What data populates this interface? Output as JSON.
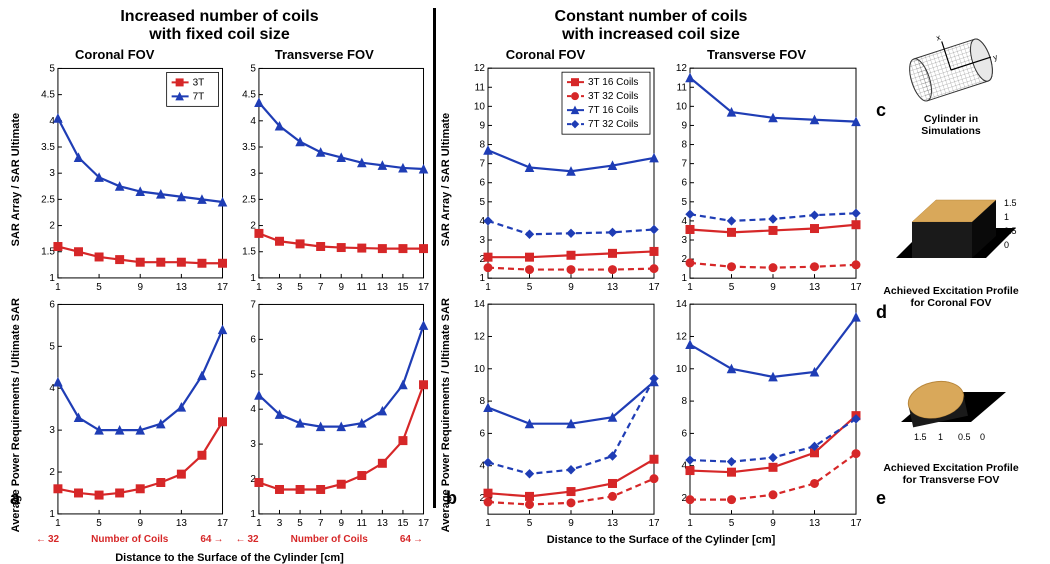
{
  "group_a": {
    "title_l1": "Increased number of coils",
    "title_l2": "with fixed coil size",
    "sub1": "Coronal FOV",
    "sub2": "Transverse FOV",
    "ylabel_top": "SAR Array / SAR Ultimate",
    "ylabel_bot": "Average Power Requirements /\nUltimate SAR",
    "xlabel": "Distance to the Surface of the Cylinder [cm]",
    "numcoils_left": "32",
    "numcoils_mid": "Number of Coils",
    "numcoils_right": "64",
    "legend": [
      {
        "label": "3T",
        "color": "#d62728",
        "marker": "square",
        "dash": false
      },
      {
        "label": "7T",
        "color": "#1f3db5",
        "marker": "triangle",
        "dash": false
      }
    ],
    "plots": {
      "top_left": {
        "xlim": [
          1,
          17
        ],
        "ylim": [
          1,
          5
        ],
        "xticks": [
          1,
          5,
          9,
          13,
          17
        ],
        "yticks": [
          1,
          1.5,
          2,
          2.5,
          3,
          3.5,
          4,
          4.5,
          5
        ],
        "x": [
          1,
          3,
          5,
          7,
          9,
          11,
          13,
          15,
          17
        ],
        "series": [
          {
            "key": "3T",
            "y": [
              1.6,
              1.5,
              1.4,
              1.35,
              1.3,
              1.3,
              1.3,
              1.28,
              1.28
            ]
          },
          {
            "key": "7T",
            "y": [
              4.05,
              3.3,
              2.92,
              2.75,
              2.65,
              2.6,
              2.55,
              2.5,
              2.45
            ]
          }
        ]
      },
      "top_right": {
        "xlim": [
          1,
          17
        ],
        "ylim": [
          1,
          5
        ],
        "xticks": [
          1,
          3,
          5,
          7,
          9,
          11,
          13,
          15,
          17
        ],
        "yticks": [
          1,
          1.5,
          2,
          2.5,
          3,
          3.5,
          4,
          4.5,
          5
        ],
        "x": [
          1,
          3,
          5,
          7,
          9,
          11,
          13,
          15,
          17
        ],
        "series": [
          {
            "key": "3T",
            "y": [
              1.85,
              1.7,
              1.65,
              1.6,
              1.58,
              1.57,
              1.56,
              1.56,
              1.56
            ]
          },
          {
            "key": "7T",
            "y": [
              4.35,
              3.9,
              3.6,
              3.4,
              3.3,
              3.2,
              3.15,
              3.1,
              3.08
            ]
          }
        ]
      },
      "bot_left": {
        "xlim": [
          1,
          17
        ],
        "ylim": [
          1,
          6
        ],
        "xticks": [
          1,
          5,
          9,
          13,
          17
        ],
        "yticks": [
          1,
          2,
          3,
          4,
          5,
          6
        ],
        "x": [
          1,
          3,
          5,
          7,
          9,
          11,
          13,
          15,
          17
        ],
        "series": [
          {
            "key": "3T",
            "y": [
              1.6,
              1.5,
              1.45,
              1.5,
              1.6,
              1.75,
              1.95,
              2.4,
              3.2
            ]
          },
          {
            "key": "7T",
            "y": [
              4.15,
              3.3,
              3.0,
              3.0,
              3.0,
              3.15,
              3.55,
              4.3,
              5.4
            ]
          }
        ]
      },
      "bot_right": {
        "xlim": [
          1,
          17
        ],
        "ylim": [
          1,
          7
        ],
        "xticks": [
          1,
          3,
          5,
          7,
          9,
          11,
          13,
          15,
          17
        ],
        "yticks": [
          1,
          2,
          3,
          4,
          5,
          6,
          7
        ],
        "x": [
          1,
          3,
          5,
          7,
          9,
          11,
          13,
          15,
          17
        ],
        "series": [
          {
            "key": "3T",
            "y": [
              1.9,
              1.7,
              1.7,
              1.7,
              1.85,
              2.1,
              2.45,
              3.1,
              4.7
            ]
          },
          {
            "key": "7T",
            "y": [
              4.4,
              3.85,
              3.6,
              3.5,
              3.5,
              3.6,
              3.95,
              4.7,
              6.4
            ]
          }
        ]
      }
    }
  },
  "group_b": {
    "title_l1": "Constant number of coils",
    "title_l2": "with increased coil size",
    "sub1": "Coronal FOV",
    "sub2": "Transverse FOV",
    "ylabel_top": "SAR Array / SAR Ultimate",
    "ylabel_bot": "Average Power Requirements /\nUltimate SAR",
    "xlabel": "Distance to the Surface of the Cylinder [cm]",
    "legend": [
      {
        "label": "3T 16 Coils",
        "color": "#d62728",
        "marker": "square",
        "dash": false
      },
      {
        "label": "3T 32 Coils",
        "color": "#d62728",
        "marker": "circle",
        "dash": true
      },
      {
        "label": "7T 16 Coils",
        "color": "#1f3db5",
        "marker": "triangle",
        "dash": false
      },
      {
        "label": "7T 32 Coils",
        "color": "#1f3db5",
        "marker": "diamond",
        "dash": true
      }
    ],
    "plots": {
      "top_left": {
        "xlim": [
          1,
          17
        ],
        "ylim": [
          1,
          12
        ],
        "xticks": [
          1,
          5,
          9,
          13,
          17
        ],
        "yticks": [
          1,
          2,
          3,
          4,
          5,
          6,
          7,
          8,
          9,
          10,
          11,
          12
        ],
        "x": [
          1,
          5,
          9,
          13,
          17
        ],
        "series": [
          {
            "key": "3T 16 Coils",
            "y": [
              2.1,
              2.1,
              2.2,
              2.3,
              2.4
            ]
          },
          {
            "key": "3T 32 Coils",
            "y": [
              1.55,
              1.45,
              1.45,
              1.45,
              1.5
            ]
          },
          {
            "key": "7T 16 Coils",
            "y": [
              7.7,
              6.8,
              6.6,
              6.9,
              7.3
            ]
          },
          {
            "key": "7T 32 Coils",
            "y": [
              4.0,
              3.3,
              3.35,
              3.4,
              3.55
            ]
          }
        ]
      },
      "top_right": {
        "xlim": [
          1,
          17
        ],
        "ylim": [
          1,
          12
        ],
        "xticks": [
          1,
          5,
          9,
          13,
          17
        ],
        "yticks": [
          1,
          2,
          3,
          4,
          5,
          6,
          7,
          8,
          9,
          10,
          11,
          12
        ],
        "x": [
          1,
          5,
          9,
          13,
          17
        ],
        "series": [
          {
            "key": "3T 16 Coils",
            "y": [
              3.55,
              3.4,
              3.5,
              3.6,
              3.8
            ]
          },
          {
            "key": "3T 32 Coils",
            "y": [
              1.8,
              1.6,
              1.55,
              1.6,
              1.7
            ]
          },
          {
            "key": "7T 16 Coils",
            "y": [
              11.5,
              9.7,
              9.4,
              9.3,
              9.2
            ]
          },
          {
            "key": "7T 32 Coils",
            "y": [
              4.35,
              4.0,
              4.1,
              4.3,
              4.4
            ]
          }
        ]
      },
      "bot_left": {
        "xlim": [
          1,
          17
        ],
        "ylim": [
          1,
          14
        ],
        "xticks": [
          1,
          5,
          9,
          13,
          17
        ],
        "yticks": [
          2,
          4,
          6,
          8,
          10,
          12,
          14
        ],
        "x": [
          1,
          5,
          9,
          13,
          17
        ],
        "series": [
          {
            "key": "3T 16 Coils",
            "y": [
              2.3,
              2.1,
              2.4,
              2.9,
              4.4
            ]
          },
          {
            "key": "3T 32 Coils",
            "y": [
              1.75,
              1.6,
              1.7,
              2.1,
              3.2
            ]
          },
          {
            "key": "7T 16 Coils",
            "y": [
              7.6,
              6.6,
              6.6,
              7.0,
              9.2
            ]
          },
          {
            "key": "7T 32 Coils",
            "y": [
              4.2,
              3.5,
              3.75,
              4.6,
              9.4
            ]
          }
        ]
      },
      "bot_right": {
        "xlim": [
          1,
          17
        ],
        "ylim": [
          1,
          14
        ],
        "xticks": [
          1,
          5,
          9,
          13,
          17
        ],
        "yticks": [
          2,
          4,
          6,
          8,
          10,
          12,
          14
        ],
        "x": [
          1,
          5,
          9,
          13,
          17
        ],
        "series": [
          {
            "key": "3T 16 Coils",
            "y": [
              3.7,
              3.6,
              3.9,
              4.8,
              7.1
            ]
          },
          {
            "key": "3T 32 Coils",
            "y": [
              1.9,
              1.9,
              2.2,
              2.9,
              4.75
            ]
          },
          {
            "key": "7T 16 Coils",
            "y": [
              11.5,
              10.0,
              9.5,
              9.8,
              13.2
            ]
          },
          {
            "key": "7T 32 Coils",
            "y": [
              4.35,
              4.25,
              4.5,
              5.2,
              6.9
            ]
          }
        ]
      }
    }
  },
  "side": {
    "c": "Cylinder in\nSimulations",
    "d": "Achieved Excitation Profile\nfor Coronal FOV",
    "e": "Achieved Excitation Profile\nfor Transverse FOV",
    "axis_ticks_d": [
      0,
      0.5,
      1,
      1.5
    ],
    "axis_ticks_e": [
      0,
      0.5,
      1,
      1.5
    ]
  },
  "tags": {
    "a": "a",
    "b": "b",
    "c": "c",
    "d": "d",
    "e": "e"
  },
  "style": {
    "line_width": 2.2,
    "marker_size": 8,
    "axis_color": "#000000",
    "bg": "#ffffff"
  }
}
